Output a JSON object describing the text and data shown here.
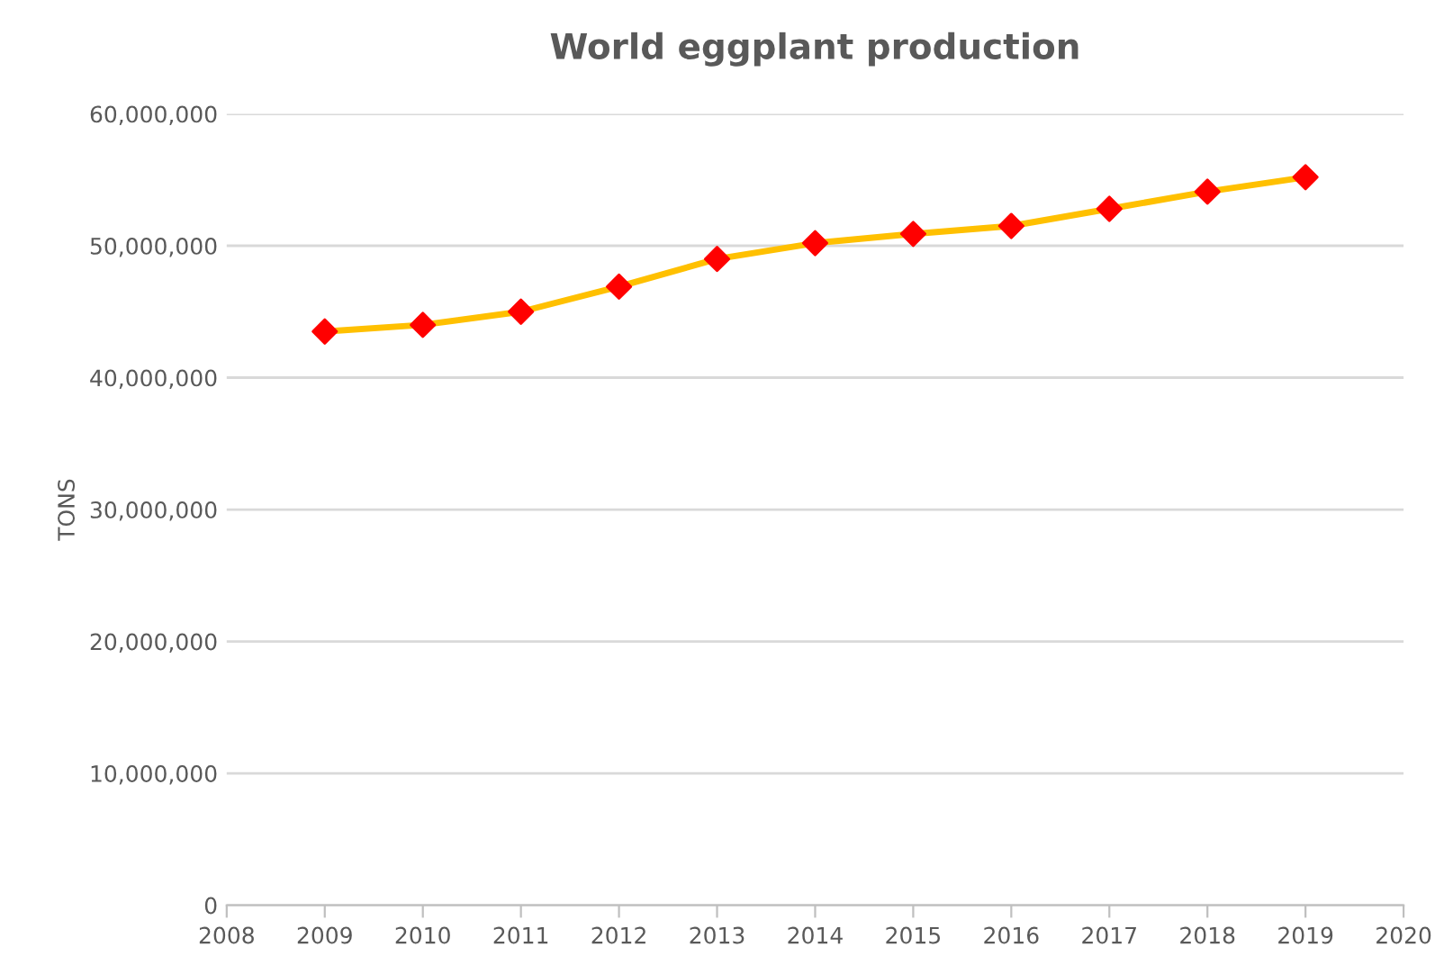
{
  "chart_data": {
    "type": "line",
    "title": "World eggplant production",
    "ylabel": "TONS",
    "x": [
      2009,
      2010,
      2011,
      2012,
      2013,
      2014,
      2015,
      2016,
      2017,
      2018,
      2019
    ],
    "series": [
      {
        "color": "#ffc000",
        "colors": [
          "#ff0000",
          "#ff0000",
          "#ff0000",
          "#ff0000",
          "#ff0000",
          "#ff0000",
          "#ff0000",
          "#ff0000",
          "#ff0000",
          "#ff0000",
          "#ff0000"
        ],
        "values": [
          43500000,
          44000000,
          45000000,
          46900000,
          49000000,
          50200000,
          50900000,
          51500000,
          52800000,
          54100000,
          55200000
        ]
      }
    ],
    "xlim": [
      2008,
      2020
    ],
    "xticks": [
      2008,
      2009,
      2010,
      2011,
      2012,
      2013,
      2014,
      2015,
      2016,
      2017,
      2018,
      2019,
      2020
    ],
    "ylim": [
      0,
      60000000
    ],
    "yticks": [
      0,
      {
        "value": 10000000,
        "label": "10,000,000"
      },
      {
        "value": 20000000,
        "label": "20,000,000"
      },
      {
        "value": 30000000,
        "label": "30,000,000"
      },
      {
        "value": 40000000,
        "label": "40,000,000"
      },
      {
        "value": 50000000,
        "label": "50,000,000"
      },
      {
        "value": 60000000,
        "label": "60,000,000"
      }
    ],
    "grid": "y",
    "marker": "diamond",
    "line_style": "solid",
    "legend": false
  }
}
